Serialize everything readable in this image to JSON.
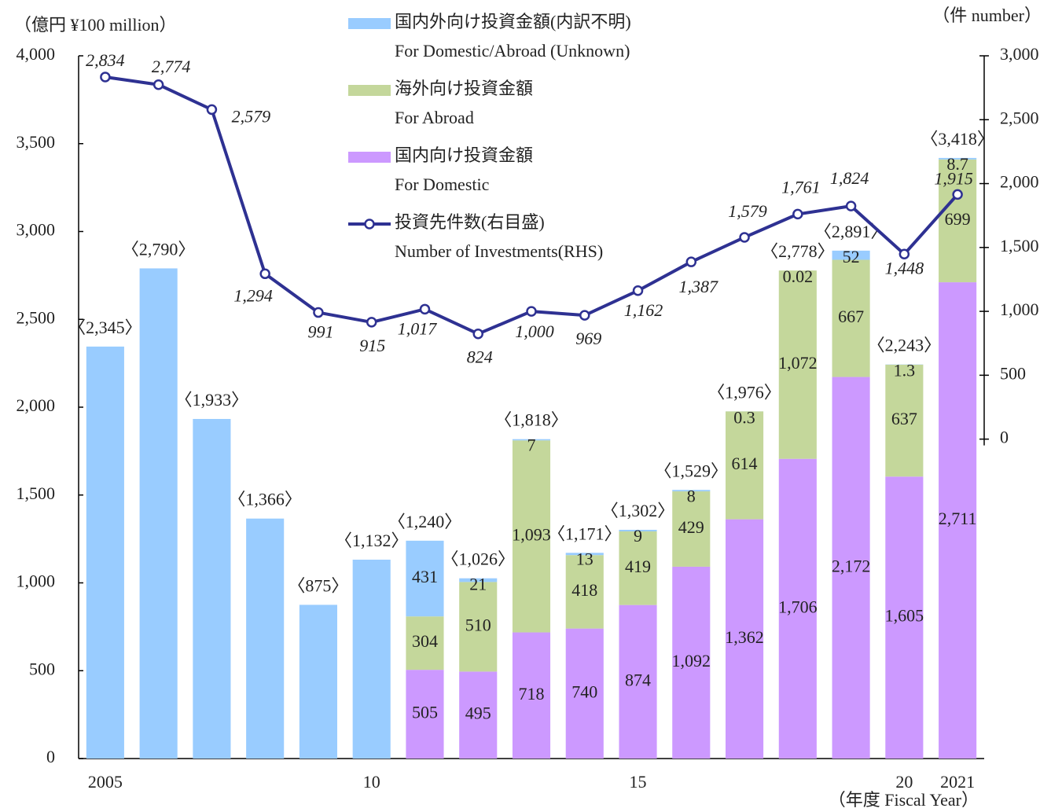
{
  "chart_data": {
    "type": "stacked-bar-line",
    "y_label": "（億円 ¥100 million）",
    "y2_label": "（件 number）",
    "x_label": "（年度 Fiscal Year）",
    "categories": [
      "2005",
      null,
      null,
      null,
      null,
      "10",
      null,
      null,
      null,
      null,
      "15",
      null,
      null,
      null,
      null,
      "20",
      "2021"
    ],
    "ylim": [
      0,
      4000
    ],
    "yticks": [
      0,
      500,
      {
        "value": 1000,
        "label": "1,000"
      },
      {
        "value": 1500,
        "label": "1,500"
      },
      {
        "value": 2000,
        "label": "2,000"
      },
      {
        "value": 2500,
        "label": "2,500"
      },
      {
        "value": 3000,
        "label": "3,000"
      },
      {
        "value": 3500,
        "label": "3,500"
      },
      {
        "value": 4000,
        "label": "4,000"
      }
    ],
    "y2lim": [
      -2500,
      3000
    ],
    "y2ticks": [
      0,
      500,
      {
        "value": 1000,
        "label": "1,000"
      },
      {
        "value": 1500,
        "label": "1,500"
      },
      {
        "value": 2000,
        "label": "2,000"
      },
      {
        "value": 2500,
        "label": "2,500"
      },
      {
        "value": 3000,
        "label": "3,000"
      }
    ],
    "series": [
      {
        "name": "国内外向け投資金額(内訳不明)",
        "name_en": "For Domestic/Abroad (Unknown)",
        "type": "bar",
        "color": "#99ccff",
        "values": [
          2345,
          2790,
          1933,
          1366,
          875,
          1132,
          431,
          21,
          7,
          13,
          9,
          8,
          0.3,
          0.02,
          52,
          1.3,
          8.7
        ],
        "value_labels": [
          null,
          null,
          null,
          null,
          null,
          null,
          "431",
          "21",
          "7",
          "13",
          "9",
          "8",
          "0.3",
          "0.02",
          "52",
          "1.3",
          "8.7"
        ]
      },
      {
        "name": "海外向け投資金額",
        "name_en": "For Abroad",
        "type": "bar",
        "color": "#c4d79b",
        "values": [
          null,
          null,
          null,
          null,
          null,
          null,
          304,
          510,
          1093,
          418,
          419,
          429,
          614,
          1072,
          667,
          637,
          699
        ],
        "value_labels": [
          null,
          null,
          null,
          null,
          null,
          null,
          "304",
          "510",
          "1,093",
          "418",
          "419",
          "429",
          "614",
          "1,072",
          "667",
          "637",
          "699"
        ]
      },
      {
        "name": "国内向け投資金額",
        "name_en": "For Domestic",
        "type": "bar",
        "color": "#cc99ff",
        "values": [
          null,
          null,
          null,
          null,
          null,
          null,
          505,
          495,
          718,
          740,
          874,
          1092,
          1362,
          1706,
          2172,
          1605,
          2711
        ],
        "value_labels": [
          null,
          null,
          null,
          null,
          null,
          null,
          "505",
          "495",
          "718",
          "740",
          "874",
          "1,092",
          "1,362",
          "1,706",
          "2,172",
          "1,605",
          "2,711"
        ]
      },
      {
        "name": "投資先件数(右目盛)",
        "name_en": "Number of Investments(RHS)",
        "type": "line",
        "axis": "y2",
        "color": "#2e3192",
        "values": [
          2834,
          2774,
          2579,
          1294,
          991,
          915,
          1017,
          824,
          1000,
          969,
          1162,
          1387,
          1579,
          1761,
          1824,
          1448,
          1915
        ],
        "value_labels": [
          "2,834",
          "2,774",
          "2,579",
          "1,294",
          "991",
          "915",
          "1,017",
          "824",
          "1,000",
          "969",
          "1,162",
          "1,387",
          "1,579",
          "1,761",
          "1,824",
          "1,448",
          "1,915"
        ]
      }
    ],
    "totals": {
      "values": [
        2345,
        2790,
        1933,
        1366,
        875,
        1132,
        1240,
        1026,
        1818,
        1171,
        1302,
        1529,
        1976,
        2778,
        2891,
        2243,
        3418
      ],
      "value_labels": [
        "〈2,345〉",
        "〈2,790〉",
        "〈1,933〉",
        "〈1,366〉",
        "〈875〉",
        "〈1,132〉",
        "〈1,240〉",
        "〈1,026〉",
        "〈1,818〉",
        "〈1,171〉",
        "〈1,302〉",
        "〈1,529〉",
        "〈1,976〉",
        "〈2,778〉",
        "〈2,891〉",
        "〈2,243〉",
        "〈3,418〉"
      ]
    }
  }
}
